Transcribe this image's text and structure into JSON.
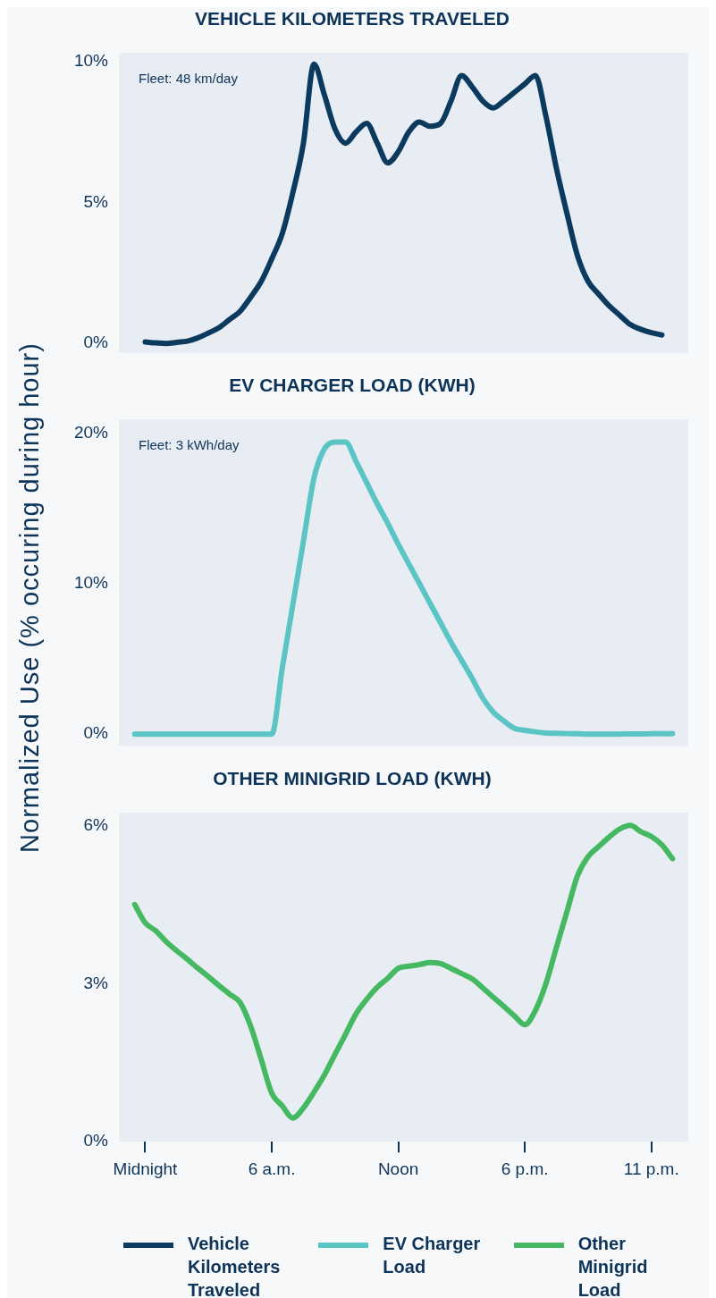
{
  "chart_data": [
    {
      "type": "line",
      "title": "VEHICLE KILOMETERS TRAVELED",
      "ylabel": "Normalized Use (% occuring during hour)",
      "annotations": [
        "Fleet: 48 km/day"
      ],
      "categories": [
        null,
        null,
        null,
        null,
        null,
        null,
        null,
        null,
        null,
        null,
        null,
        null,
        null,
        null,
        null,
        null,
        null,
        null,
        null,
        null,
        null,
        null,
        null,
        null,
        null,
        null,
        null,
        null,
        null,
        null,
        null,
        null,
        null,
        null,
        null,
        null,
        null,
        null,
        null,
        null,
        null,
        null,
        null,
        null,
        null,
        null,
        null,
        null,
        null,
        null,
        null,
        null,
        null,
        null
      ],
      "ylim": [
        -0.33,
        10.3
      ],
      "yticks": [
        {
          "value": 0,
          "label": "0%"
        },
        {
          "value": 5,
          "label": "5%"
        },
        {
          "value": 10,
          "label": "10%"
        }
      ],
      "tick_labels": "y",
      "grid": false,
      "legend": "bottom",
      "marker": "none",
      "line_style": "solid",
      "series": [
        {
          "name": "Vehicle Kilometers Traveled",
          "color": "#0b3a5e",
          "values": [
            null,
            null,
            0.05,
            0.02,
            0,
            0.04,
            0.08,
            0.2,
            0.37,
            0.56,
            0.85,
            1.14,
            1.64,
            2.2,
            3.0,
            3.9,
            5.35,
            7.1,
            9.9,
            8.8,
            7.6,
            7.1,
            7.5,
            7.8,
            7.1,
            6.4,
            6.8,
            7.5,
            7.85,
            7.7,
            7.8,
            8.6,
            9.5,
            9.1,
            8.6,
            8.35,
            8.6,
            8.9,
            9.2,
            9.5,
            8.05,
            6.2,
            4.6,
            3.1,
            2.2,
            1.75,
            1.33,
            1.0,
            0.67,
            0.5,
            0.38,
            0.3,
            null,
            null
          ]
        }
      ]
    },
    {
      "type": "line",
      "title": "EV CHARGER LOAD (KWH)",
      "annotations": [
        "Fleet: 3 kWh/day"
      ],
      "categories": [
        null,
        null,
        null,
        null,
        null,
        null,
        null,
        null,
        null,
        null,
        null,
        null,
        null,
        null,
        null,
        null,
        null,
        null,
        null,
        null,
        null,
        null,
        null,
        null,
        null,
        null,
        null,
        null,
        null,
        null,
        null,
        null,
        null,
        null,
        null,
        null,
        null,
        null,
        null,
        null,
        null,
        null,
        null,
        null,
        null,
        null,
        null,
        null,
        null,
        null,
        null,
        null,
        null,
        null
      ],
      "ylim": [
        -0.8,
        20.9
      ],
      "yticks": [
        {
          "value": 0,
          "label": "0%"
        },
        {
          "value": 10,
          "label": "10%"
        },
        {
          "value": 20,
          "label": "20%"
        }
      ],
      "tick_labels": "y",
      "grid": false,
      "legend": "bottom",
      "marker": "none",
      "line_style": "solid",
      "series": [
        {
          "name": "EV Charger Load",
          "color": "#5bc4c4",
          "values": [
            null,
            0,
            0,
            0,
            0,
            0,
            0,
            0,
            0,
            0,
            0,
            0,
            0,
            0,
            0,
            4.4,
            8.6,
            12.8,
            17.0,
            18.95,
            19.4,
            19.4,
            18.1,
            16.7,
            15.3,
            14.0,
            12.6,
            11.3,
            10.0,
            8.7,
            7.4,
            6.1,
            4.9,
            3.7,
            2.4,
            1.46,
            0.87,
            0.38,
            0.25,
            0.15,
            0.07,
            0.05,
            0.03,
            0.02,
            0,
            0,
            0,
            0,
            0.01,
            0.01,
            0.02,
            0.02,
            0.03,
            null
          ]
        }
      ]
    },
    {
      "type": "line",
      "title": "OTHER MINIGRID LOAD (KWH)",
      "categories": [
        null,
        null,
        "Midnight",
        null,
        null,
        null,
        null,
        null,
        null,
        null,
        null,
        null,
        null,
        null,
        "6 a.m.",
        null,
        null,
        null,
        null,
        null,
        null,
        null,
        null,
        null,
        null,
        null,
        "Noon",
        null,
        null,
        null,
        null,
        null,
        null,
        null,
        null,
        null,
        null,
        null,
        "6 p.m.",
        null,
        null,
        null,
        null,
        null,
        null,
        null,
        null,
        null,
        null,
        null,
        "11 p.m.",
        null,
        null,
        null
      ],
      "ylim": [
        0,
        6.24
      ],
      "yticks": [
        {
          "value": 0,
          "label": "0%"
        },
        {
          "value": 3,
          "label": "3%"
        },
        {
          "value": 6,
          "label": "6%"
        }
      ],
      "grid": false,
      "legend": "bottom",
      "marker": "none",
      "line_style": "solid",
      "series": [
        {
          "name": "Other Minigrid Load",
          "color": "#45b862",
          "values": [
            null,
            4.5,
            4.15,
            4.0,
            3.79,
            3.62,
            3.46,
            3.29,
            3.13,
            2.96,
            2.8,
            2.64,
            2.19,
            1.56,
            0.92,
            0.68,
            0.45,
            0.64,
            0.94,
            1.27,
            1.66,
            2.04,
            2.43,
            2.7,
            2.93,
            3.1,
            3.29,
            3.33,
            3.36,
            3.4,
            3.38,
            3.29,
            3.19,
            3.09,
            2.92,
            2.74,
            2.57,
            2.39,
            2.22,
            2.49,
            3.0,
            3.69,
            4.37,
            5.05,
            5.41,
            5.6,
            5.78,
            5.93,
            6.0,
            5.88,
            5.79,
            5.63,
            5.37,
            null
          ]
        }
      ]
    }
  ]
}
